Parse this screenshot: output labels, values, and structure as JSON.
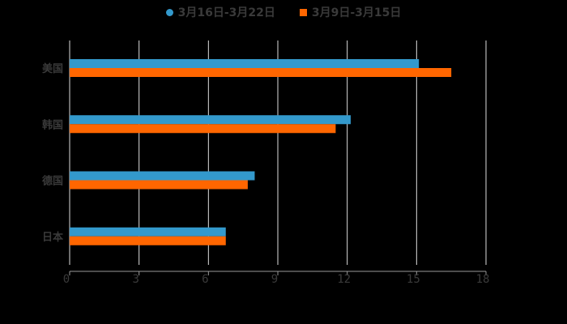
{
  "chart_data": {
    "type": "bar",
    "orientation": "horizontal",
    "title": "",
    "categories": [
      "美国",
      "韩国",
      "德国",
      "日本"
    ],
    "series": [
      {
        "name": "3月16日-3月22日",
        "color": "#3399cc",
        "values": [
          15.1,
          12.15,
          8.0,
          6.75
        ]
      },
      {
        "name": "3月9日-3月15日",
        "color": "#ff6600",
        "values": [
          16.5,
          11.5,
          7.7,
          6.75
        ]
      }
    ],
    "xlim": [
      0,
      18
    ],
    "xticks": [
      "0",
      "3",
      "6",
      "9",
      "12",
      "15",
      "18"
    ],
    "xlabel": "",
    "ylabel": "",
    "grid": true,
    "legend_position": "top"
  }
}
